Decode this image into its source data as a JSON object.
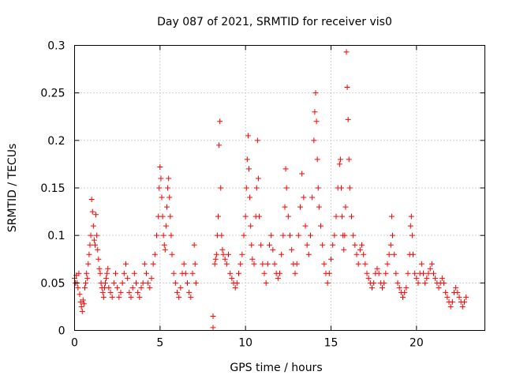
{
  "chart_data": {
    "type": "scatter",
    "title": "Day 087 of 2021, SRMTID for receiver vis0",
    "xlabel": "GPS time / hours",
    "ylabel": "SRMTID / TECUs",
    "xlim": [
      0,
      24
    ],
    "ylim": [
      0,
      0.3
    ],
    "xticks": [
      0,
      5,
      10,
      15,
      20
    ],
    "xtick_labels": [
      "0",
      "5",
      "10",
      "15",
      "20"
    ],
    "yticks": [
      0,
      0.05,
      0.1,
      0.15,
      0.2,
      0.25,
      0.3
    ],
    "ytick_labels": [
      "0",
      "0.05",
      "0.1",
      "0.15",
      "0.2",
      "0.25",
      "0.3"
    ],
    "grid": true,
    "marker": "plus",
    "series": [
      {
        "name": "vis0",
        "color": "#ff0000",
        "points": [
          [
            0.0,
            0.055
          ],
          [
            0.05,
            0.05
          ],
          [
            0.1,
            0.058
          ],
          [
            0.15,
            0.05
          ],
          [
            0.2,
            0.045
          ],
          [
            0.25,
            0.06
          ],
          [
            0.3,
            0.038
          ],
          [
            0.35,
            0.03
          ],
          [
            0.4,
            0.025
          ],
          [
            0.45,
            0.02
          ],
          [
            0.5,
            0.032
          ],
          [
            0.55,
            0.028
          ],
          [
            0.6,
            0.045
          ],
          [
            0.65,
            0.05
          ],
          [
            0.7,
            0.06
          ],
          [
            0.75,
            0.055
          ],
          [
            0.8,
            0.07
          ],
          [
            0.85,
            0.08
          ],
          [
            0.9,
            0.09
          ],
          [
            0.95,
            0.1
          ],
          [
            1.0,
            0.138
          ],
          [
            1.05,
            0.125
          ],
          [
            1.1,
            0.11
          ],
          [
            1.15,
            0.095
          ],
          [
            1.2,
            0.09
          ],
          [
            1.25,
            0.122
          ],
          [
            1.3,
            0.1
          ],
          [
            1.35,
            0.085
          ],
          [
            1.4,
            0.075
          ],
          [
            1.45,
            0.065
          ],
          [
            1.5,
            0.06
          ],
          [
            1.55,
            0.05
          ],
          [
            1.6,
            0.045
          ],
          [
            1.65,
            0.04
          ],
          [
            1.7,
            0.035
          ],
          [
            1.75,
            0.045
          ],
          [
            1.8,
            0.05
          ],
          [
            1.85,
            0.055
          ],
          [
            1.9,
            0.06
          ],
          [
            1.95,
            0.065
          ],
          [
            2.0,
            0.045
          ],
          [
            2.1,
            0.04
          ],
          [
            2.2,
            0.035
          ],
          [
            2.3,
            0.05
          ],
          [
            2.4,
            0.06
          ],
          [
            2.5,
            0.045
          ],
          [
            2.6,
            0.035
          ],
          [
            2.7,
            0.04
          ],
          [
            2.8,
            0.05
          ],
          [
            2.9,
            0.06
          ],
          [
            3.0,
            0.07
          ],
          [
            3.1,
            0.055
          ],
          [
            3.2,
            0.04
          ],
          [
            3.3,
            0.035
          ],
          [
            3.4,
            0.045
          ],
          [
            3.5,
            0.06
          ],
          [
            3.6,
            0.05
          ],
          [
            3.7,
            0.04
          ],
          [
            3.8,
            0.035
          ],
          [
            3.9,
            0.045
          ],
          [
            4.0,
            0.05
          ],
          [
            4.1,
            0.07
          ],
          [
            4.2,
            0.06
          ],
          [
            4.3,
            0.05
          ],
          [
            4.4,
            0.045
          ],
          [
            4.5,
            0.055
          ],
          [
            4.6,
            0.07
          ],
          [
            4.7,
            0.08
          ],
          [
            4.8,
            0.1
          ],
          [
            4.9,
            0.12
          ],
          [
            4.95,
            0.15
          ],
          [
            5.0,
            0.172
          ],
          [
            5.05,
            0.16
          ],
          [
            5.1,
            0.14
          ],
          [
            5.15,
            0.12
          ],
          [
            5.2,
            0.1
          ],
          [
            5.25,
            0.09
          ],
          [
            5.3,
            0.085
          ],
          [
            5.35,
            0.11
          ],
          [
            5.4,
            0.13
          ],
          [
            5.45,
            0.15
          ],
          [
            5.5,
            0.16
          ],
          [
            5.55,
            0.14
          ],
          [
            5.6,
            0.12
          ],
          [
            5.65,
            0.1
          ],
          [
            5.7,
            0.08
          ],
          [
            5.8,
            0.06
          ],
          [
            5.9,
            0.05
          ],
          [
            6.0,
            0.04
          ],
          [
            6.1,
            0.035
          ],
          [
            6.2,
            0.045
          ],
          [
            6.3,
            0.06
          ],
          [
            6.4,
            0.07
          ],
          [
            6.5,
            0.06
          ],
          [
            6.6,
            0.05
          ],
          [
            6.7,
            0.04
          ],
          [
            6.8,
            0.035
          ],
          [
            6.9,
            0.06
          ],
          [
            7.0,
            0.09
          ],
          [
            7.05,
            0.07
          ],
          [
            7.1,
            0.05
          ],
          [
            8.1,
            0.015
          ],
          [
            8.1,
            0.003
          ],
          [
            8.2,
            0.07
          ],
          [
            8.25,
            0.075
          ],
          [
            8.3,
            0.08
          ],
          [
            8.35,
            0.1
          ],
          [
            8.4,
            0.12
          ],
          [
            8.45,
            0.195
          ],
          [
            8.5,
            0.22
          ],
          [
            8.55,
            0.15
          ],
          [
            8.6,
            0.1
          ],
          [
            8.65,
            0.085
          ],
          [
            8.7,
            0.08
          ],
          [
            8.8,
            0.075
          ],
          [
            8.9,
            0.07
          ],
          [
            9.0,
            0.08
          ],
          [
            9.1,
            0.06
          ],
          [
            9.2,
            0.055
          ],
          [
            9.3,
            0.05
          ],
          [
            9.4,
            0.045
          ],
          [
            9.5,
            0.05
          ],
          [
            9.6,
            0.06
          ],
          [
            9.7,
            0.07
          ],
          [
            9.8,
            0.08
          ],
          [
            9.9,
            0.1
          ],
          [
            10.0,
            0.12
          ],
          [
            10.05,
            0.15
          ],
          [
            10.1,
            0.18
          ],
          [
            10.15,
            0.205
          ],
          [
            10.2,
            0.17
          ],
          [
            10.25,
            0.14
          ],
          [
            10.3,
            0.11
          ],
          [
            10.35,
            0.09
          ],
          [
            10.4,
            0.075
          ],
          [
            10.5,
            0.07
          ],
          [
            10.6,
            0.12
          ],
          [
            10.65,
            0.15
          ],
          [
            10.7,
            0.2
          ],
          [
            10.75,
            0.16
          ],
          [
            10.8,
            0.12
          ],
          [
            10.9,
            0.09
          ],
          [
            11.0,
            0.07
          ],
          [
            11.1,
            0.06
          ],
          [
            11.2,
            0.05
          ],
          [
            11.3,
            0.07
          ],
          [
            11.4,
            0.09
          ],
          [
            11.5,
            0.1
          ],
          [
            11.6,
            0.085
          ],
          [
            11.7,
            0.07
          ],
          [
            11.8,
            0.06
          ],
          [
            11.9,
            0.055
          ],
          [
            12.0,
            0.06
          ],
          [
            12.1,
            0.08
          ],
          [
            12.2,
            0.1
          ],
          [
            12.3,
            0.13
          ],
          [
            12.35,
            0.17
          ],
          [
            12.4,
            0.15
          ],
          [
            12.5,
            0.12
          ],
          [
            12.6,
            0.1
          ],
          [
            12.7,
            0.085
          ],
          [
            12.8,
            0.07
          ],
          [
            12.9,
            0.06
          ],
          [
            13.0,
            0.07
          ],
          [
            13.1,
            0.1
          ],
          [
            13.2,
            0.13
          ],
          [
            13.3,
            0.165
          ],
          [
            13.4,
            0.14
          ],
          [
            13.5,
            0.11
          ],
          [
            13.6,
            0.09
          ],
          [
            13.7,
            0.08
          ],
          [
            13.8,
            0.1
          ],
          [
            13.9,
            0.14
          ],
          [
            14.0,
            0.2
          ],
          [
            14.05,
            0.23
          ],
          [
            14.1,
            0.25
          ],
          [
            14.15,
            0.22
          ],
          [
            14.2,
            0.18
          ],
          [
            14.25,
            0.15
          ],
          [
            14.3,
            0.13
          ],
          [
            14.4,
            0.11
          ],
          [
            14.5,
            0.09
          ],
          [
            14.6,
            0.07
          ],
          [
            14.7,
            0.06
          ],
          [
            14.8,
            0.05
          ],
          [
            14.9,
            0.06
          ],
          [
            15.0,
            0.075
          ],
          [
            15.1,
            0.09
          ],
          [
            15.2,
            0.1
          ],
          [
            15.3,
            0.12
          ],
          [
            15.4,
            0.15
          ],
          [
            15.5,
            0.175
          ],
          [
            15.55,
            0.18
          ],
          [
            15.6,
            0.15
          ],
          [
            15.65,
            0.12
          ],
          [
            15.7,
            0.1
          ],
          [
            15.75,
            0.085
          ],
          [
            15.8,
            0.1
          ],
          [
            15.85,
            0.13
          ],
          [
            15.9,
            0.293
          ],
          [
            15.95,
            0.256
          ],
          [
            16.0,
            0.222
          ],
          [
            16.05,
            0.18
          ],
          [
            16.1,
            0.15
          ],
          [
            16.2,
            0.12
          ],
          [
            16.3,
            0.1
          ],
          [
            16.4,
            0.09
          ],
          [
            16.5,
            0.08
          ],
          [
            16.6,
            0.07
          ],
          [
            16.7,
            0.085
          ],
          [
            16.8,
            0.09
          ],
          [
            16.9,
            0.08
          ],
          [
            17.0,
            0.07
          ],
          [
            17.1,
            0.06
          ],
          [
            17.2,
            0.055
          ],
          [
            17.3,
            0.05
          ],
          [
            17.4,
            0.045
          ],
          [
            17.5,
            0.05
          ],
          [
            17.6,
            0.06
          ],
          [
            17.7,
            0.065
          ],
          [
            17.8,
            0.06
          ],
          [
            17.9,
            0.05
          ],
          [
            18.0,
            0.045
          ],
          [
            18.1,
            0.05
          ],
          [
            18.2,
            0.06
          ],
          [
            18.3,
            0.07
          ],
          [
            18.4,
            0.08
          ],
          [
            18.5,
            0.09
          ],
          [
            18.55,
            0.12
          ],
          [
            18.6,
            0.1
          ],
          [
            18.7,
            0.08
          ],
          [
            18.8,
            0.06
          ],
          [
            18.9,
            0.05
          ],
          [
            19.0,
            0.045
          ],
          [
            19.1,
            0.04
          ],
          [
            19.2,
            0.035
          ],
          [
            19.3,
            0.04
          ],
          [
            19.4,
            0.045
          ],
          [
            19.5,
            0.06
          ],
          [
            19.6,
            0.08
          ],
          [
            19.65,
            0.11
          ],
          [
            19.7,
            0.12
          ],
          [
            19.75,
            0.1
          ],
          [
            19.8,
            0.08
          ],
          [
            19.9,
            0.06
          ],
          [
            20.0,
            0.055
          ],
          [
            20.1,
            0.05
          ],
          [
            20.2,
            0.06
          ],
          [
            20.3,
            0.07
          ],
          [
            20.4,
            0.06
          ],
          [
            20.5,
            0.05
          ],
          [
            20.6,
            0.055
          ],
          [
            20.7,
            0.06
          ],
          [
            20.8,
            0.065
          ],
          [
            20.9,
            0.07
          ],
          [
            21.0,
            0.06
          ],
          [
            21.1,
            0.055
          ],
          [
            21.2,
            0.05
          ],
          [
            21.3,
            0.045
          ],
          [
            21.4,
            0.05
          ],
          [
            21.5,
            0.055
          ],
          [
            21.6,
            0.05
          ],
          [
            21.7,
            0.04
          ],
          [
            21.8,
            0.035
          ],
          [
            21.9,
            0.03
          ],
          [
            22.0,
            0.025
          ],
          [
            22.1,
            0.03
          ],
          [
            22.2,
            0.04
          ],
          [
            22.3,
            0.045
          ],
          [
            22.4,
            0.04
          ],
          [
            22.5,
            0.035
          ],
          [
            22.6,
            0.03
          ],
          [
            22.7,
            0.025
          ],
          [
            22.8,
            0.03
          ],
          [
            22.9,
            0.035
          ]
        ]
      }
    ]
  }
}
